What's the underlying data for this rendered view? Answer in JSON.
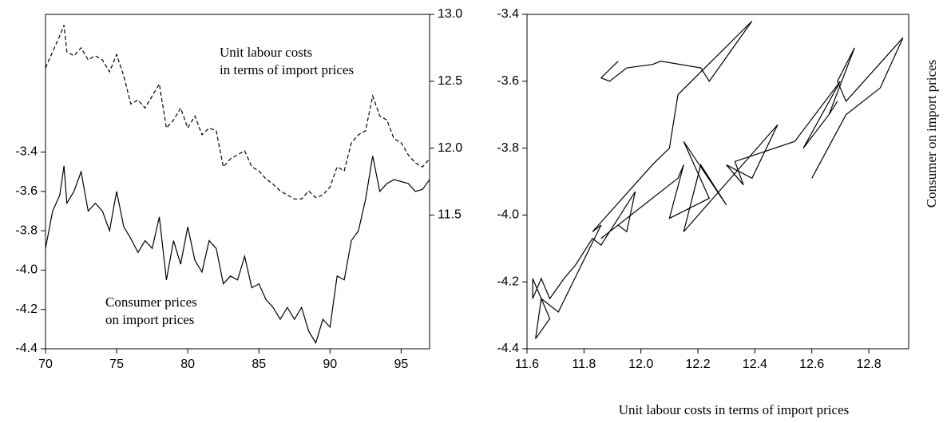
{
  "chart_data": [
    {
      "type": "line",
      "x": [
        70,
        70.5,
        71,
        71.3,
        71.5,
        72,
        72.5,
        73,
        73.5,
        74,
        74.5,
        75,
        75.5,
        76,
        76.5,
        77,
        77.5,
        78,
        78.5,
        79,
        79.5,
        80,
        80.5,
        81,
        81.5,
        82,
        82.5,
        83,
        83.5,
        84,
        84.5,
        85,
        85.5,
        86,
        86.5,
        87,
        87.5,
        88,
        88.5,
        89,
        89.5,
        90,
        90.5,
        91,
        91.5,
        92,
        92.5,
        93,
        93.5,
        94,
        94.5,
        95,
        95.5,
        96,
        96.5,
        97
      ],
      "xlim": [
        70,
        97
      ],
      "xticks": [
        70,
        75,
        80,
        85,
        90,
        95
      ],
      "ylim": [
        -4.4,
        -2.7
      ],
      "yticks": [
        -4.4,
        -4.2,
        {
          "value": -4,
          "label": "-4.0"
        },
        -3.8,
        -3.6,
        -3.4
      ],
      "y2lim": [
        10.5,
        13
      ],
      "y2ticks": [
        11.5,
        {
          "value": 12,
          "label": "12.0"
        },
        12.5,
        {
          "value": 13,
          "label": "13.0"
        }
      ],
      "series": [
        {
          "name": "Consumer prices on import prices",
          "color": "#000000",
          "style": "solid",
          "values": [
            -3.89,
            -3.7,
            -3.62,
            -3.47,
            -3.66,
            -3.6,
            -3.5,
            -3.7,
            -3.66,
            -3.7,
            -3.8,
            -3.6,
            -3.78,
            -3.84,
            -3.91,
            -3.85,
            -3.89,
            -3.73,
            -4.05,
            -3.85,
            -3.97,
            -3.78,
            -3.95,
            -4.01,
            -3.85,
            -3.89,
            -4.07,
            -4.03,
            -4.05,
            -3.93,
            -4.09,
            -4.07,
            -4.15,
            -4.19,
            -4.25,
            -4.19,
            -4.25,
            -4.19,
            -4.31,
            -4.37,
            -4.25,
            -4.29,
            -4.03,
            -4.05,
            -3.85,
            -3.8,
            -3.64,
            -3.42,
            -3.6,
            -3.56,
            -3.54,
            -3.55,
            -3.56,
            -3.6,
            -3.59,
            -3.54
          ]
        },
        {
          "name": "Unit labour costs in terms of import prices",
          "color": "#000000",
          "style": "dashed",
          "axis": "y2",
          "values": [
            12.6,
            12.72,
            12.84,
            12.92,
            12.72,
            12.69,
            12.75,
            12.66,
            12.69,
            12.66,
            12.57,
            12.7,
            12.54,
            12.33,
            12.36,
            12.3,
            12.39,
            12.48,
            12.15,
            12.21,
            12.3,
            12.15,
            12.24,
            12.1,
            12.15,
            12.13,
            11.86,
            11.92,
            11.95,
            11.98,
            11.86,
            11.83,
            11.77,
            11.73,
            11.68,
            11.65,
            11.62,
            11.62,
            11.68,
            11.63,
            11.65,
            11.71,
            11.86,
            11.83,
            12.04,
            12.1,
            12.13,
            12.39,
            12.24,
            12.21,
            12.07,
            12.04,
            11.95,
            11.89,
            11.86,
            11.92
          ]
        }
      ],
      "annotations": [
        {
          "text": [
            "Unit labour costs",
            "in terms of import prices"
          ]
        },
        {
          "text": [
            "Consumer prices",
            "on import prices"
          ]
        }
      ]
    },
    {
      "type": "scatter",
      "connected": true,
      "xlabel": "Unit labour costs in terms of import prices",
      "ylabel": "Consumer on import prices",
      "xlim": [
        11.6,
        12.94
      ],
      "xticks": [
        11.6,
        11.8,
        {
          "value": 12,
          "label": "12.0"
        },
        12.2,
        12.4,
        12.6,
        12.8
      ],
      "ylim": [
        -4.4,
        -3.4
      ],
      "yticks": [
        -4.4,
        -4.2,
        {
          "value": -4,
          "label": "-4.0"
        },
        -3.8,
        -3.6,
        -3.4
      ],
      "color": "#000000",
      "x": [
        12.6,
        12.72,
        12.84,
        12.92,
        12.72,
        12.69,
        12.75,
        12.66,
        12.69,
        12.66,
        12.57,
        12.7,
        12.54,
        12.33,
        12.36,
        12.3,
        12.39,
        12.48,
        12.15,
        12.21,
        12.3,
        12.15,
        12.24,
        12.1,
        12.15,
        12.13,
        11.86,
        11.92,
        11.95,
        11.98,
        11.86,
        11.83,
        11.77,
        11.73,
        11.68,
        11.65,
        11.62,
        11.62,
        11.68,
        11.63,
        11.65,
        11.71,
        11.86,
        11.83,
        12.04,
        12.1,
        12.13,
        12.39,
        12.24,
        12.21,
        12.07,
        12.04,
        11.95,
        11.89,
        11.86,
        11.92
      ],
      "values": [
        -3.89,
        -3.7,
        -3.62,
        -3.47,
        -3.66,
        -3.6,
        -3.5,
        -3.7,
        -3.66,
        -3.7,
        -3.8,
        -3.6,
        -3.78,
        -3.84,
        -3.91,
        -3.85,
        -3.89,
        -3.73,
        -4.05,
        -3.85,
        -3.97,
        -3.78,
        -3.95,
        -4.01,
        -3.85,
        -3.89,
        -4.07,
        -4.03,
        -4.05,
        -3.93,
        -4.09,
        -4.07,
        -4.15,
        -4.19,
        -4.25,
        -4.19,
        -4.25,
        -4.19,
        -4.31,
        -4.37,
        -4.25,
        -4.29,
        -4.03,
        -4.05,
        -3.85,
        -3.8,
        -3.64,
        -3.42,
        -3.6,
        -3.56,
        -3.54,
        -3.55,
        -3.56,
        -3.6,
        -3.59,
        -3.54
      ]
    }
  ]
}
